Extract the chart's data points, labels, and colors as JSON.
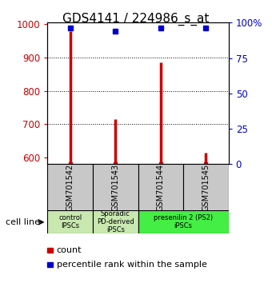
{
  "title": "GDS4141 / 224986_s_at",
  "samples": [
    "GSM701542",
    "GSM701543",
    "GSM701544",
    "GSM701545"
  ],
  "count_values": [
    980,
    715,
    885,
    615
  ],
  "percentile_values": [
    96,
    94,
    96,
    96
  ],
  "ylim_left": [
    580,
    1005
  ],
  "ylim_right": [
    0,
    100
  ],
  "yticks_left": [
    600,
    700,
    800,
    900,
    1000
  ],
  "yticks_right": [
    0,
    25,
    50,
    75,
    100
  ],
  "ytick_labels_right": [
    "0",
    "25",
    "50",
    "75",
    "100%"
  ],
  "bar_color": "#cc0000",
  "dot_color": "#0000cc",
  "sample_box_color": "#c8c8c8",
  "group_colors": [
    "#c8e8b0",
    "#c8e8b0",
    "#44ee44"
  ],
  "group_labels": [
    "control\nIPSCs",
    "Sporadic\nPD-derived\niPSCs",
    "presenilin 2 (PS2)\niPSCs"
  ],
  "group_starts": [
    0,
    1,
    2
  ],
  "group_ends": [
    0,
    1,
    3
  ],
  "cell_line_label": "cell line",
  "legend_count": "count",
  "legend_percentile": "percentile rank within the sample",
  "left_axis_color": "#cc0000",
  "right_axis_color": "#0000cc",
  "title_fontsize": 11
}
